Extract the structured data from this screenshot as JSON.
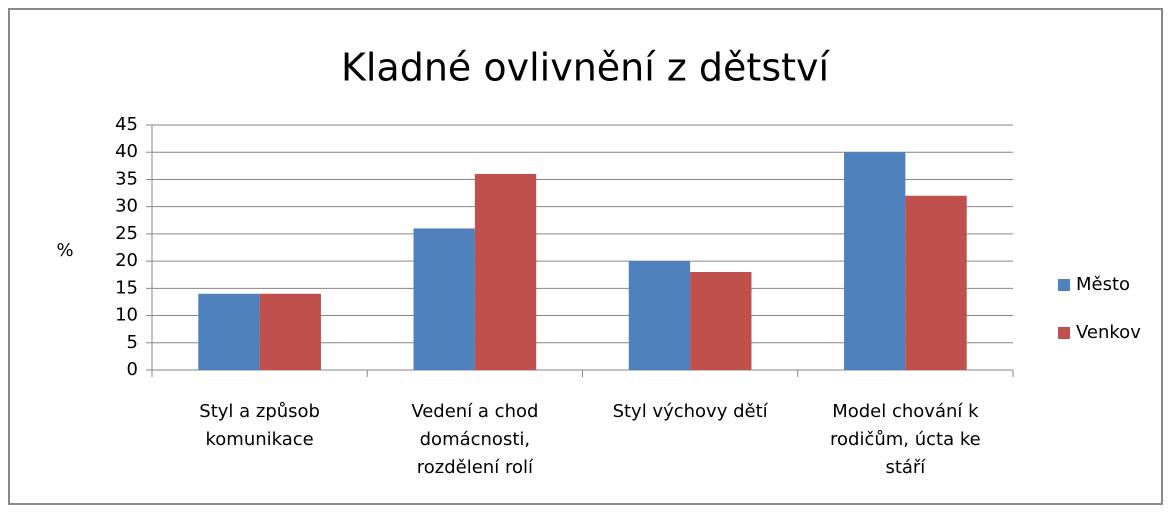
{
  "chart_data": {
    "type": "bar",
    "title": "Kladné ovlivnění z dětství",
    "y_label": "%",
    "categories": [
      "Styl a způsob komunikace",
      "Vedení a chod domácnosti, rozdělení rolí",
      "Styl výchovy dětí",
      "Model chování k rodičům, úcta ke stáří"
    ],
    "series": [
      {
        "name": "Město",
        "color": "#4f81bd",
        "values": [
          14,
          26,
          20,
          40
        ]
      },
      {
        "name": "Venkov",
        "color": "#c0504d",
        "values": [
          14,
          36,
          18,
          32
        ]
      }
    ],
    "ylim": [
      0,
      45
    ],
    "yticks": [
      0,
      5,
      10,
      15,
      20,
      25,
      30,
      35,
      40,
      45
    ],
    "grid": true,
    "legend": "right"
  }
}
